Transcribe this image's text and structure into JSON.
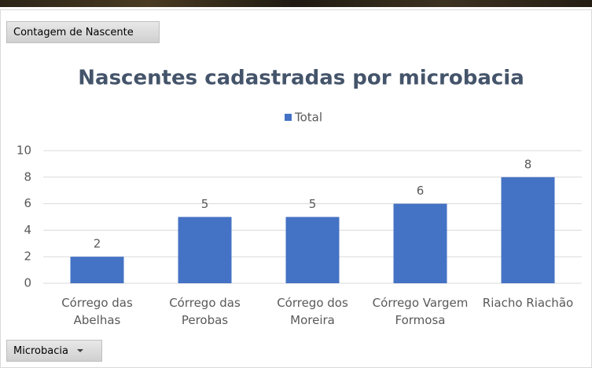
{
  "chart_data": {
    "type": "bar",
    "title": "Nascentes cadastradas por microbacia",
    "value_field_button": "Contagem de Nascente",
    "axis_field_button": "Microbacia",
    "categories": [
      "Córrego das Abelhas",
      "Córrego das Perobas",
      "Córrego dos Moreira",
      "Córrego Vargem Formosa",
      "Riacho Riachão"
    ],
    "series": [
      {
        "name": "Total",
        "color": "#4472c4",
        "values": [
          2,
          5,
          5,
          6,
          8
        ]
      }
    ],
    "ylim": [
      0,
      10
    ],
    "yticks": [
      0,
      2,
      4,
      6,
      8,
      10
    ],
    "grid": true,
    "legend": "top",
    "data_labels": true
  }
}
